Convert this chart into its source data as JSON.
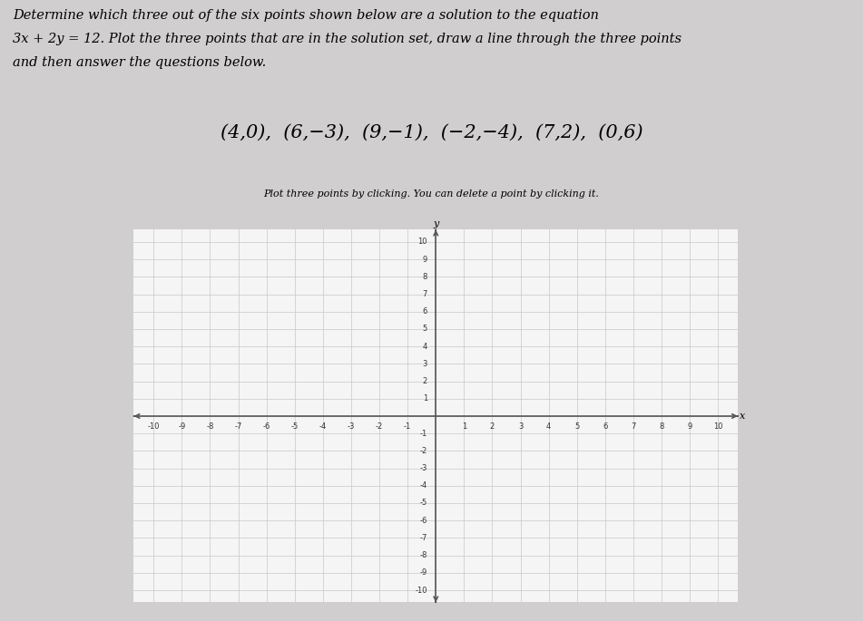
{
  "title_line1": "Determine which three out of the six points shown below are a solution to the equation",
  "title_line2": "3x + 2y = 12. Plot the three points that are in the solution set, draw a line through the three points",
  "title_line3": "and then answer the questions below.",
  "points_display": "(4,0),  (6,−3),  (9,−1),  (−2,−4),  (7,2),  (0,6)",
  "instruction": "Plot three points by clicking. You can delete a point by clicking it.",
  "xmin": -10,
  "xmax": 10,
  "ymin": -10,
  "ymax": 10,
  "grid_color": "#c8c8c8",
  "axis_color": "#555555",
  "bg_color": "#f5f5f5",
  "outer_bg": "#d0cece",
  "title_fontsize": 10.5,
  "points_fontsize": 15,
  "instruction_fontsize": 8,
  "tick_fontsize": 6
}
